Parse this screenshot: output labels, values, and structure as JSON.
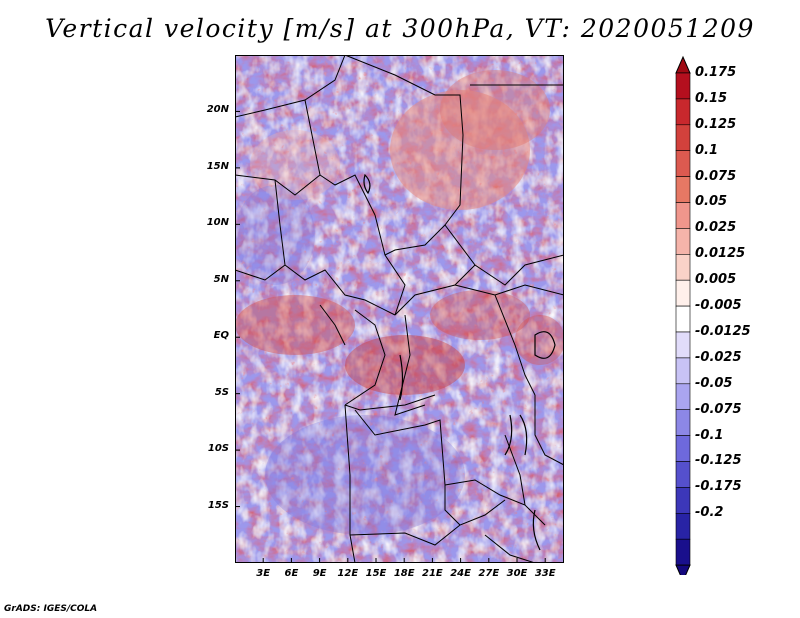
{
  "title": "Vertical velocity [m/s] at 300hPa, VT: 2020051209",
  "footer": "GrADS: IGES/COLA",
  "map": {
    "lat_labels": [
      "20N",
      "15N",
      "10N",
      "5N",
      "EQ",
      "5S",
      "10S",
      "15S"
    ],
    "lat_values": [
      20,
      15,
      10,
      5,
      0,
      -5,
      -10,
      -15
    ],
    "lon_labels": [
      "3E",
      "6E",
      "9E",
      "12E",
      "15E",
      "18E",
      "21E",
      "24E",
      "27E",
      "30E",
      "33E"
    ],
    "lon_values": [
      3,
      6,
      9,
      12,
      15,
      18,
      21,
      24,
      27,
      30,
      33
    ],
    "lat_range": [
      -20,
      25
    ],
    "lon_range": [
      0,
      35
    ]
  },
  "colorbar": {
    "labels": [
      "0.175",
      "0.15",
      "0.125",
      "0.1",
      "0.075",
      "0.05",
      "0.025",
      "0.0125",
      "0.005",
      "-0.005",
      "-0.0125",
      "-0.025",
      "-0.05",
      "-0.075",
      "-0.1",
      "-0.125",
      "-0.175",
      "-0.2"
    ],
    "colors": [
      "#b40f1e",
      "#c8282d",
      "#d2413c",
      "#dc5a50",
      "#e67864",
      "#f0968c",
      "#f5b4aa",
      "#fad2c8",
      "#fff0eb",
      "#ffffff",
      "#e1dcfa",
      "#c8c3f5",
      "#aaa5f0",
      "#8c87e6",
      "#6e69dc",
      "#5550cd",
      "#3c37b9",
      "#2823a5",
      "#190f8c"
    ],
    "top_triangle_color": "#a00a14",
    "bottom_triangle_color": "#14087d"
  },
  "colors": {
    "positive": "#d2413c",
    "negative": "#5550cd",
    "border": "#000000"
  }
}
